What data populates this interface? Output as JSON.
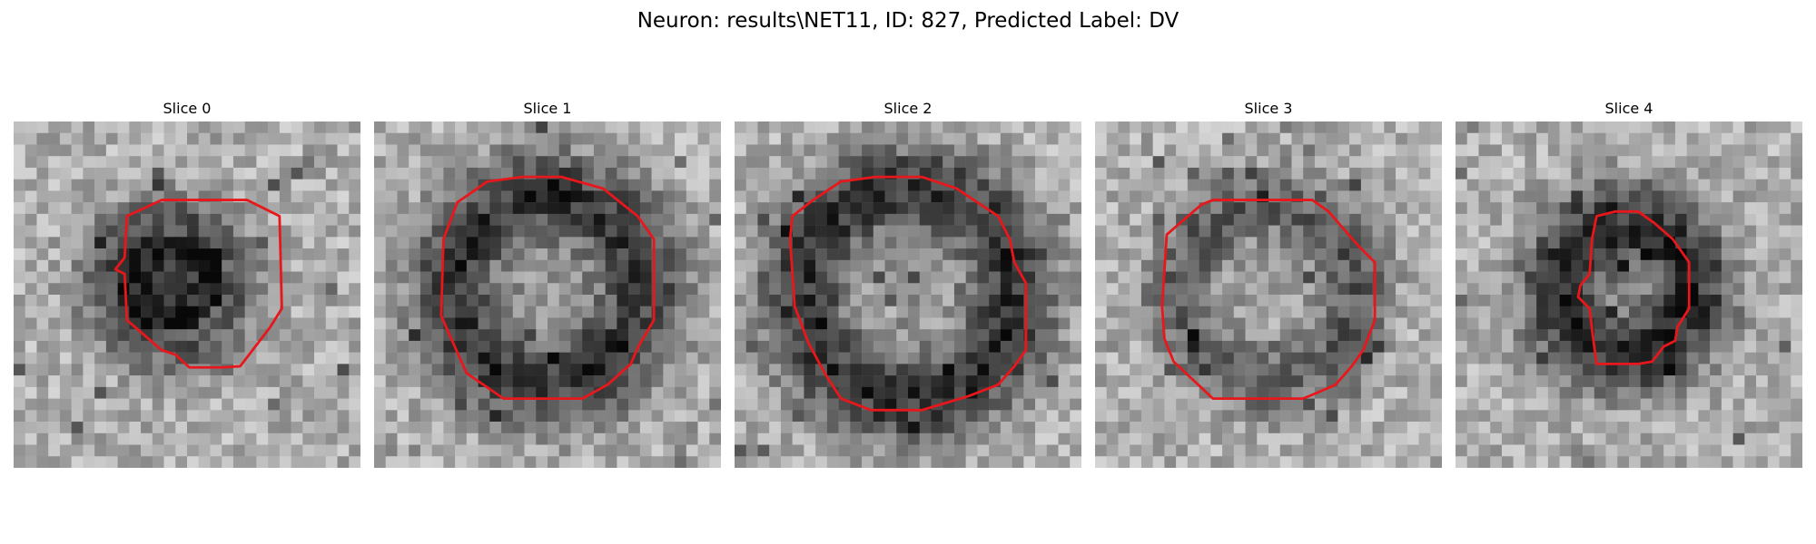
{
  "figure": {
    "title": "Neuron: results\\NET11, ID: 827, Predicted Label: DV"
  },
  "slices": [
    {
      "label": "Slice 0"
    },
    {
      "label": "Slice 1"
    },
    {
      "label": "Slice 2"
    },
    {
      "label": "Slice 3"
    },
    {
      "label": "Slice 4"
    }
  ],
  "colors": {
    "contour": "#e8171c",
    "background": "#ffffff"
  }
}
